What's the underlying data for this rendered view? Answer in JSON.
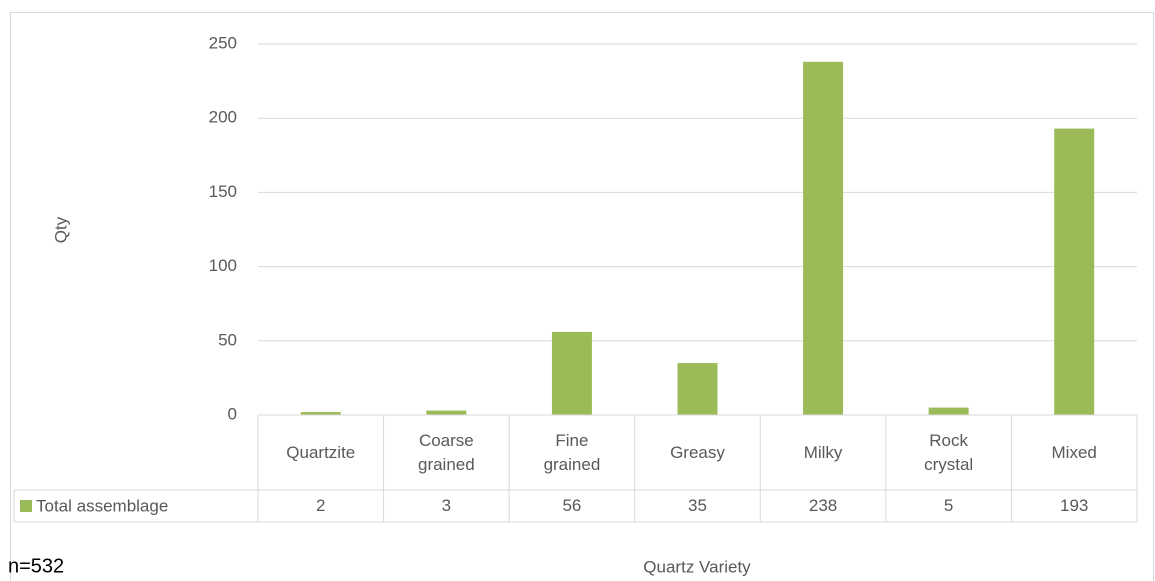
{
  "chart_data": {
    "type": "bar",
    "categories": [
      "Quartzite",
      "Coarse grained",
      "Fine grained",
      "Greasy",
      "Milky",
      "Rock crystal",
      "Mixed"
    ],
    "series": [
      {
        "name": "Total assemblage",
        "color": "#9bbb59",
        "values": [
          2,
          3,
          56,
          35,
          238,
          5,
          193
        ]
      }
    ],
    "ylabel": "Qty",
    "xlabel": "Quartz Variety",
    "annotation": "n=532",
    "ylim": [
      0,
      250
    ],
    "yticks": [
      0,
      50,
      100,
      150,
      200,
      250
    ],
    "grid": true,
    "data_table": true
  }
}
